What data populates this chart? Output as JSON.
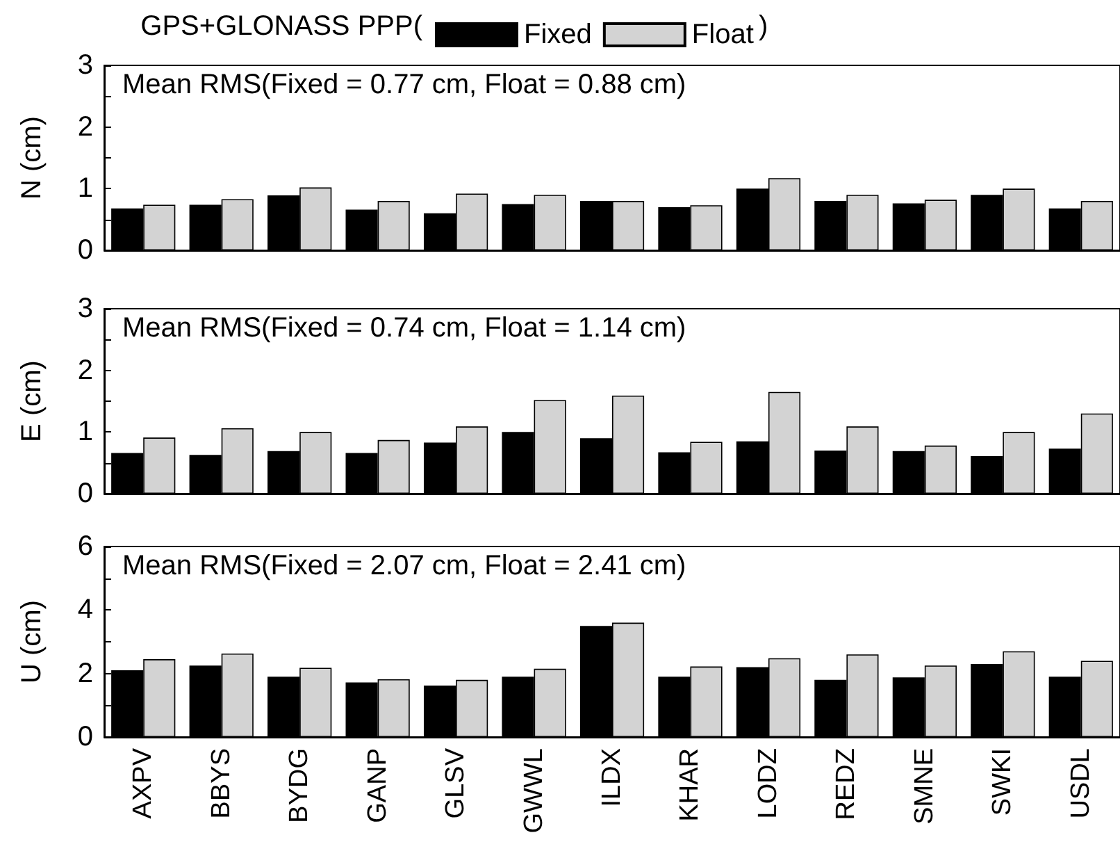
{
  "chart_data": [
    {
      "type": "bar",
      "title": "GPS+GLONASS PPP(",
      "ylabel": "N (cm)",
      "annotations": [
        "Mean RMS(Fixed = 0.77 cm, Float = 0.88 cm)",
        ")"
      ],
      "categories": [
        null,
        null,
        null,
        null,
        null,
        null,
        null,
        null,
        null,
        null,
        null,
        null,
        null
      ],
      "series": [
        {
          "name": "Fixed",
          "color": "#000000",
          "values": [
            0.68,
            0.74,
            0.89,
            0.66,
            0.6,
            0.75,
            0.8,
            0.7,
            1.0,
            0.8,
            0.76,
            0.9,
            0.68
          ]
        },
        {
          "name": "Float",
          "color": "#d3d3d3",
          "values": [
            0.74,
            0.83,
            1.02,
            0.8,
            0.92,
            0.9,
            0.8,
            0.73,
            1.17,
            0.9,
            0.82,
            1.0,
            0.8
          ]
        }
      ],
      "ylim": [
        0,
        3
      ],
      "yticks": [
        0,
        {
          "value": 0.5,
          "label": null
        },
        1,
        {
          "value": 1.5,
          "label": null
        },
        2,
        {
          "value": 2.5,
          "label": null
        },
        3
      ],
      "legend": "top",
      "tick_labels": "y"
    },
    {
      "type": "bar",
      "ylabel": "E (cm)",
      "annotations": [
        "Mean RMS(Fixed = 0.74 cm, Float = 1.14 cm)"
      ],
      "categories": [
        null,
        null,
        null,
        null,
        null,
        null,
        null,
        null,
        null,
        null,
        null,
        null,
        null
      ],
      "series": [
        {
          "color": "#000000",
          "values": [
            0.66,
            0.63,
            0.69,
            0.66,
            0.83,
            1.0,
            0.9,
            0.67,
            0.85,
            0.7,
            0.69,
            0.61,
            0.73
          ]
        },
        {
          "color": "#d3d3d3",
          "values": [
            0.91,
            1.06,
            1.0,
            0.87,
            1.09,
            1.52,
            1.59,
            0.84,
            1.65,
            1.09,
            0.78,
            1.0,
            1.3
          ]
        }
      ],
      "ylim": [
        0,
        3
      ],
      "yticks": [
        0,
        {
          "value": 0.5,
          "label": null
        },
        1,
        {
          "value": 1.5,
          "label": null
        },
        2,
        {
          "value": 2.5,
          "label": null
        },
        3
      ],
      "tick_labels": "y"
    },
    {
      "type": "bar",
      "ylabel": "U (cm)",
      "annotations": [
        "Mean RMS(Fixed = 2.07 cm, Float = 2.41 cm)"
      ],
      "categories": [
        "AXPV",
        "BBYS",
        "BYDG",
        "GANP",
        "GLSV",
        "GWWL",
        "ILDX",
        "KHAR",
        "LODZ",
        "REDZ",
        "SMNE",
        "SWKI",
        "USDL"
      ],
      "series": [
        {
          "color": "#000000",
          "values": [
            2.1,
            2.25,
            1.9,
            1.72,
            1.62,
            1.9,
            3.5,
            1.9,
            2.2,
            1.8,
            1.88,
            2.3,
            1.9
          ]
        },
        {
          "color": "#d3d3d3",
          "values": [
            2.45,
            2.63,
            2.18,
            1.82,
            1.8,
            2.15,
            3.6,
            2.22,
            2.48,
            2.6,
            2.25,
            2.7,
            2.4
          ]
        }
      ],
      "ylim": [
        0,
        6
      ],
      "yticks": [
        0,
        {
          "value": 1,
          "label": null
        },
        2,
        {
          "value": 3,
          "label": null
        },
        4,
        {
          "value": 5,
          "label": null
        },
        6
      ]
    }
  ]
}
